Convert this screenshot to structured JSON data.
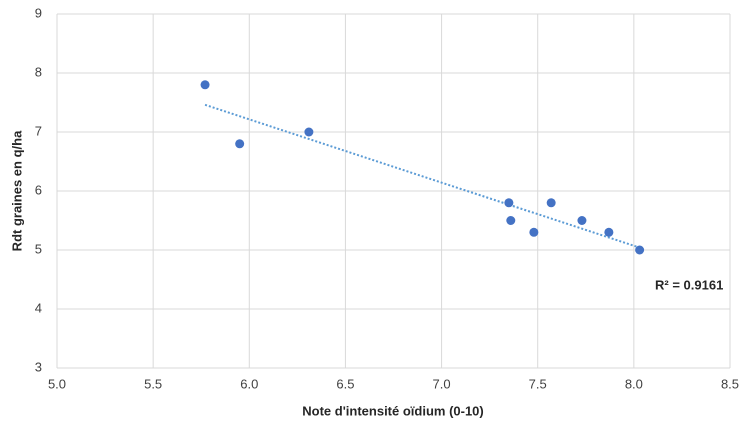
{
  "chart_data": {
    "type": "scatter",
    "x_label": "Note d'intensité oïdium (0-10)",
    "y_label": "Rdt graines en q/ha",
    "annotation": "R² = 0.9161",
    "series": [
      {
        "color": "#4472c4",
        "x": [
          5.77,
          5.95,
          6.31,
          7.35,
          7.36,
          7.48,
          7.57,
          7.73,
          7.87,
          8.03
        ],
        "values": [
          7.8,
          6.8,
          7.0,
          5.8,
          5.5,
          5.3,
          5.8,
          5.5,
          5.3,
          5.0
        ]
      }
    ],
    "trendline": {
      "color": "#5b9bd5",
      "x": [
        5.77,
        8.03
      ],
      "values": [
        7.46,
        5.04
      ]
    },
    "xlim": [
      5,
      8.5
    ],
    "xticks": [
      {
        "value": 5,
        "label": "5.0"
      },
      {
        "value": 5.5,
        "label": "5.5"
      },
      {
        "value": 6,
        "label": "6.0"
      },
      {
        "value": 6.5,
        "label": "6.5"
      },
      {
        "value": 7,
        "label": "7.0"
      },
      {
        "value": 7.5,
        "label": "7.5"
      },
      {
        "value": 8,
        "label": "8.0"
      },
      {
        "value": 8.5,
        "label": "8.5"
      }
    ],
    "ylim": [
      3,
      9
    ],
    "yticks": [
      3,
      4,
      5,
      6,
      7,
      8,
      9
    ],
    "grid": true
  }
}
